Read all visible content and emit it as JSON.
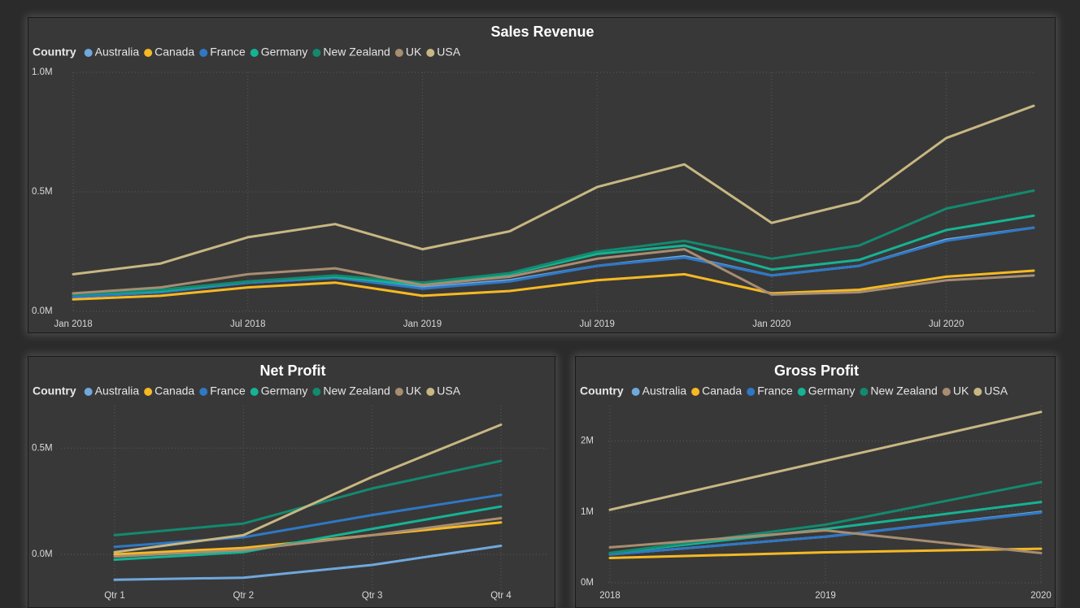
{
  "colors": {
    "Australia": "#6fa8dc",
    "Canada": "#f6b923",
    "France": "#2f78c4",
    "Germany": "#15b394",
    "New Zealand": "#138a6f",
    "UK": "#a78d72",
    "USA": "#c8b783"
  },
  "chart_data": [
    {
      "id": "sales",
      "type": "line",
      "title": "Sales Revenue",
      "legend_title": "Country",
      "legend_items": [
        "Australia",
        "Canada",
        "France",
        "Germany",
        "New Zealand",
        "UK",
        "USA"
      ],
      "xlabel": "",
      "ylabel": "",
      "x": [
        "2018-01",
        "2018-04",
        "2018-07",
        "2018-10",
        "2019-01",
        "2019-04",
        "2019-07",
        "2019-10",
        "2020-01",
        "2020-04",
        "2020-07",
        "2020-10"
      ],
      "x_ticks": [
        {
          "x": "2018-01",
          "label": "Jan 2018"
        },
        {
          "x": "2018-07",
          "label": "Jul 2018"
        },
        {
          "x": "2019-01",
          "label": "Jan 2019"
        },
        {
          "x": "2019-07",
          "label": "Jul 2019"
        },
        {
          "x": "2020-01",
          "label": "Jan 2020"
        },
        {
          "x": "2020-07",
          "label": "Jul 2020"
        }
      ],
      "ylim": [
        0,
        1000000
      ],
      "y_ticks": [
        {
          "v": 0,
          "label": "0.0M"
        },
        {
          "v": 500000,
          "label": "0.5M"
        },
        {
          "v": 1000000,
          "label": "1.0M"
        }
      ],
      "series": [
        {
          "name": "Australia",
          "values": [
            60000,
            80000,
            120000,
            140000,
            100000,
            130000,
            190000,
            230000,
            150000,
            190000,
            300000,
            350000
          ]
        },
        {
          "name": "Canada",
          "values": [
            50000,
            65000,
            100000,
            120000,
            65000,
            85000,
            130000,
            155000,
            75000,
            90000,
            145000,
            170000
          ]
        },
        {
          "name": "France",
          "values": [
            60000,
            80000,
            120000,
            140000,
            95000,
            125000,
            190000,
            225000,
            150000,
            190000,
            295000,
            350000
          ]
        },
        {
          "name": "Germany",
          "values": [
            70000,
            85000,
            125000,
            145000,
            110000,
            155000,
            240000,
            275000,
            175000,
            215000,
            340000,
            400000
          ]
        },
        {
          "name": "New Zealand",
          "values": [
            70000,
            90000,
            125000,
            150000,
            120000,
            160000,
            250000,
            295000,
            220000,
            275000,
            430000,
            505000
          ]
        },
        {
          "name": "UK",
          "values": [
            75000,
            100000,
            155000,
            180000,
            110000,
            145000,
            220000,
            260000,
            70000,
            80000,
            130000,
            150000
          ]
        },
        {
          "name": "USA",
          "values": [
            155000,
            200000,
            310000,
            365000,
            260000,
            335000,
            520000,
            615000,
            370000,
            460000,
            725000,
            860000
          ]
        }
      ]
    },
    {
      "id": "net",
      "type": "line",
      "title": "Net Profit",
      "legend_title": "Country",
      "legend_items": [
        "Australia",
        "Canada",
        "France",
        "Germany",
        "New Zealand",
        "UK",
        "USA"
      ],
      "xlabel": "",
      "ylabel": "",
      "x": [
        "Qtr 1",
        "Qtr 2",
        "Qtr 3",
        "Qtr 4"
      ],
      "x_ticks": [
        {
          "x": "Qtr 1",
          "label": "Qtr 1"
        },
        {
          "x": "Qtr 2",
          "label": "Qtr 2"
        },
        {
          "x": "Qtr 3",
          "label": "Qtr 3"
        },
        {
          "x": "Qtr 4",
          "label": "Qtr 4"
        }
      ],
      "ylim": [
        -180000,
        700000
      ],
      "y_ticks": [
        {
          "v": 0,
          "label": "0.0M"
        },
        {
          "v": 500000,
          "label": "0.5M"
        }
      ],
      "series": [
        {
          "name": "Australia",
          "values": [
            -120000,
            -110000,
            -50000,
            40000
          ]
        },
        {
          "name": "Canada",
          "values": [
            0,
            30000,
            90000,
            150000
          ]
        },
        {
          "name": "France",
          "values": [
            35000,
            80000,
            185000,
            280000
          ]
        },
        {
          "name": "Germany",
          "values": [
            -25000,
            10000,
            120000,
            225000
          ]
        },
        {
          "name": "New Zealand",
          "values": [
            90000,
            145000,
            310000,
            440000
          ]
        },
        {
          "name": "UK",
          "values": [
            -10000,
            20000,
            90000,
            170000
          ]
        },
        {
          "name": "USA",
          "values": [
            10000,
            90000,
            365000,
            610000
          ]
        }
      ]
    },
    {
      "id": "gross",
      "type": "line",
      "title": "Gross Profit",
      "legend_title": "Country",
      "legend_items": [
        "Australia",
        "Canada",
        "France",
        "Germany",
        "New Zealand",
        "UK",
        "USA"
      ],
      "xlabel": "",
      "ylabel": "",
      "x": [
        "2018",
        "2019",
        "2020"
      ],
      "x_ticks": [
        {
          "x": "2018",
          "label": "2018"
        },
        {
          "x": "2019",
          "label": "2019"
        },
        {
          "x": "2020",
          "label": "2020"
        }
      ],
      "ylim": [
        0,
        2500000
      ],
      "y_ticks": [
        {
          "v": 0,
          "label": "0M"
        },
        {
          "v": 1000000,
          "label": "1M"
        },
        {
          "v": 2000000,
          "label": "2M"
        }
      ],
      "series": [
        {
          "name": "Australia",
          "values": [
            400000,
            650000,
            1000000
          ]
        },
        {
          "name": "Canada",
          "values": [
            350000,
            430000,
            480000
          ]
        },
        {
          "name": "France",
          "values": [
            400000,
            650000,
            990000
          ]
        },
        {
          "name": "Germany",
          "values": [
            420000,
            760000,
            1140000
          ]
        },
        {
          "name": "New Zealand",
          "values": [
            420000,
            820000,
            1420000
          ]
        },
        {
          "name": "UK",
          "values": [
            500000,
            740000,
            420000
          ]
        },
        {
          "name": "USA",
          "values": [
            1030000,
            1720000,
            2410000
          ]
        }
      ]
    }
  ]
}
